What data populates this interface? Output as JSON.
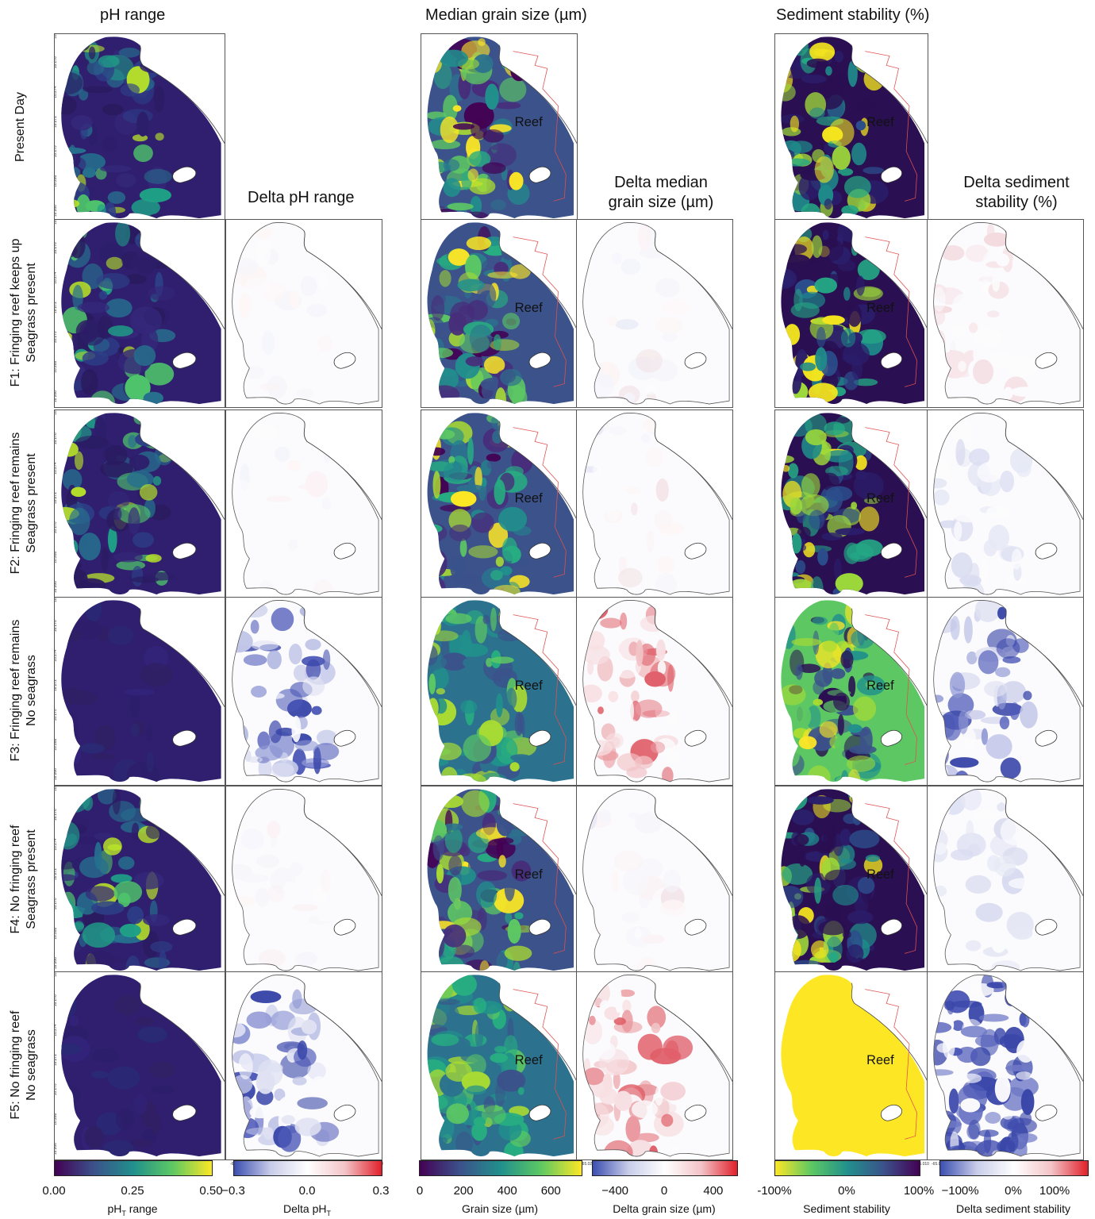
{
  "headers": {
    "ph": "pH range",
    "grain": "Median grain size (µm)",
    "stability": "Sediment stability (%)",
    "delta_ph": "Delta pH range",
    "delta_grain_1": "Delta median",
    "delta_grain_2": "grain size (µm)",
    "delta_stab_1": "Delta sediment",
    "delta_stab_2": "stability (%)"
  },
  "rows": [
    {
      "line1": "Present Day",
      "line2": ""
    },
    {
      "line1": "F1: Fringing reef keeps up",
      "line2": "Seagrass present"
    },
    {
      "line1": "F2: Fringing reef remains",
      "line2": "Seagrass present"
    },
    {
      "line1": "F3: Fringing reef remains",
      "line2": "No seagrass"
    },
    {
      "line1": "F4: No fringing reef",
      "line2": "Seagrass present"
    },
    {
      "line1": "F5: No fringing reef",
      "line2": "No seagrass"
    }
  ],
  "reef_label": "Reef",
  "y_ticks": [
    "18.278",
    "18.276",
    "18.274",
    "18.272",
    "18.270",
    "18.268",
    "18.266"
  ],
  "x_ticks": [
    "-65.020",
    "-65.018",
    "-65.016",
    "-65.014",
    "-65.012",
    "-65.010"
  ],
  "colorbars": [
    {
      "title": "pH",
      "sub": "T",
      "title_suffix": " range",
      "ticks": [
        "0.00",
        "0.25",
        "0.50"
      ]
    },
    {
      "title": "Delta pH",
      "sub": "T",
      "title_suffix": "",
      "ticks": [
        "−0.3",
        "0.0",
        "0.3"
      ]
    },
    {
      "title": "Grain size (µm)",
      "sub": "",
      "title_suffix": "",
      "ticks": [
        "0",
        "200",
        "400",
        "600"
      ]
    },
    {
      "title": "Delta grain size (µm)",
      "sub": "",
      "title_suffix": "",
      "ticks": [
        "−400",
        "0",
        "400"
      ]
    },
    {
      "title": "Sediment stability",
      "sub": "",
      "title_suffix": "",
      "ticks": [
        "-100%",
        "0%",
        "100%"
      ]
    },
    {
      "title": "Delta sediment stability",
      "sub": "",
      "title_suffix": "",
      "ticks": [
        "−100%",
        "0%",
        "100%"
      ]
    }
  ],
  "colors": {
    "viridis_dark": "#3b1d6e",
    "viridis_mid": "#21908c",
    "viridis_light": "#fde725",
    "delta_blue": "#3b4fb0",
    "delta_red": "#e0202a",
    "reef_outline": "#e05050",
    "coast_outline": "#444444"
  }
}
